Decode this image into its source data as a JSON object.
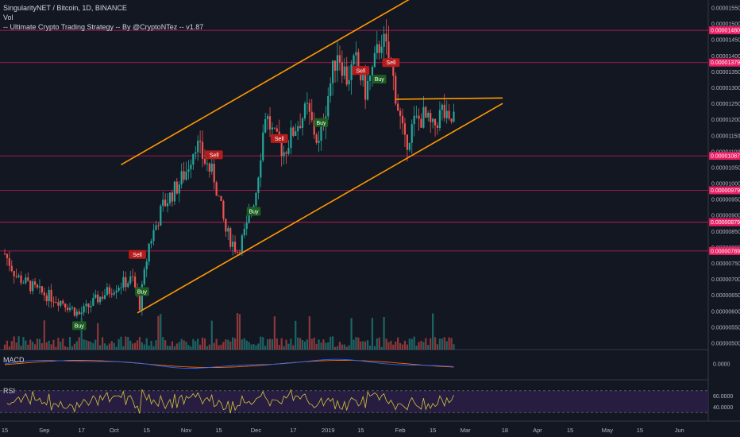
{
  "header": {
    "symbol_line": "SingularityNET / Bitcoin, 1D, BINANCE",
    "vol_label": "Vol",
    "strategy_label": "-- Ultimate Crypto Trading Strategy -- By @CryptoNTez -- v1.87"
  },
  "panes": {
    "macd_label": "MACD",
    "rsi_label": "RSI"
  },
  "colors": {
    "background": "#131722",
    "up": "#26a69a",
    "down": "#ef5350",
    "channel": "#ff9800",
    "level": "#e91e63",
    "macd": "#2962ff",
    "signal": "#ff6d00",
    "rsi": "#d4c53a",
    "rsi_band": "#2a1e45"
  },
  "chart_data": {
    "type": "candlestick",
    "price_axis": {
      "min": 5e-06,
      "max": 1.56e-05,
      "ticks": [
        "0.00001550",
        "0.00001500",
        "0.00001450",
        "0.00001400",
        "0.00001350",
        "0.00001300",
        "0.00001250",
        "0.00001200",
        "0.00001150",
        "0.00001100",
        "0.00001050",
        "0.00001000",
        "0.00000950",
        "0.00000900",
        "0.00000850",
        "0.00000800",
        "0.00000750",
        "0.00000700",
        "0.00000650",
        "0.00000600",
        "0.00000550",
        "0.00000500"
      ]
    },
    "time_axis": {
      "labels": [
        {
          "label": "15",
          "d": 0
        },
        {
          "label": "Sep",
          "d": 17
        },
        {
          "label": "17",
          "d": 33
        },
        {
          "label": "Oct",
          "d": 47
        },
        {
          "label": "15",
          "d": 61
        },
        {
          "label": "Nov",
          "d": 78
        },
        {
          "label": "15",
          "d": 92
        },
        {
          "label": "Dec",
          "d": 108
        },
        {
          "label": "17",
          "d": 124
        },
        {
          "label": "2019",
          "d": 139
        },
        {
          "label": "15",
          "d": 153
        },
        {
          "label": "Feb",
          "d": 170
        },
        {
          "label": "15",
          "d": 184
        },
        {
          "label": "Mar",
          "d": 198
        },
        {
          "label": "18",
          "d": 215
        },
        {
          "label": "Apr",
          "d": 229
        },
        {
          "label": "15",
          "d": 243
        },
        {
          "label": "May",
          "d": 259
        },
        {
          "label": "15",
          "d": 273
        },
        {
          "label": "Jun",
          "d": 290
        }
      ]
    },
    "levels": [
      {
        "price": 1.48e-05,
        "label": "0.00001480"
      },
      {
        "price": 1.379e-05,
        "label": "0.00001379"
      },
      {
        "price": 1.087e-05,
        "label": "0.00001087"
      },
      {
        "price": 9.79e-06,
        "label": "0.00000979"
      },
      {
        "price": 8.79e-06,
        "label": "0.00000879"
      },
      {
        "price": 7.89e-06,
        "label": "0.00000789"
      }
    ],
    "trendlines": [
      {
        "from": [
          50,
          1.059e-05
        ],
        "to": [
          177,
          1.59e-05
        ]
      },
      {
        "from": [
          57,
          5.95e-06
        ],
        "to": [
          214,
          1.251e-05
        ]
      },
      {
        "from": [
          168,
          1.264e-05
        ],
        "to": [
          214,
          1.268e-05
        ]
      }
    ],
    "signals": [
      {
        "text": "Buy",
        "d": 32,
        "price": 5.55e-06,
        "side": "buy"
      },
      {
        "text": "Buy",
        "d": 59,
        "price": 6.62e-06,
        "side": "buy"
      },
      {
        "text": "Sell",
        "d": 57,
        "price": 7.78e-06,
        "side": "sell"
      },
      {
        "text": "Buy",
        "d": 107,
        "price": 9.13e-06,
        "side": "buy"
      },
      {
        "text": "Sell",
        "d": 90,
        "price": 1.09e-05,
        "side": "sell"
      },
      {
        "text": "Sell",
        "d": 118,
        "price": 1.141e-05,
        "side": "sell"
      },
      {
        "text": "Buy",
        "d": 136,
        "price": 1.191e-05,
        "side": "buy"
      },
      {
        "text": "Sell",
        "d": 153,
        "price": 1.354e-05,
        "side": "sell"
      },
      {
        "text": "Buy",
        "d": 161,
        "price": 1.327e-05,
        "side": "buy"
      },
      {
        "text": "Sell",
        "d": 166,
        "price": 1.379e-05,
        "side": "sell"
      }
    ],
    "swing_points": [
      {
        "d": 0,
        "price": 7.8e-06
      },
      {
        "d": 5,
        "price": 7.1e-06
      },
      {
        "d": 15,
        "price": 6.6e-06
      },
      {
        "d": 25,
        "price": 6.3e-06
      },
      {
        "d": 32,
        "price": 5.9e-06
      },
      {
        "d": 40,
        "price": 6.4e-06
      },
      {
        "d": 48,
        "price": 6.8e-06
      },
      {
        "d": 55,
        "price": 7e-06
      },
      {
        "d": 58,
        "price": 6.2e-06
      },
      {
        "d": 62,
        "price": 8.1e-06
      },
      {
        "d": 68,
        "price": 9.3e-06
      },
      {
        "d": 74,
        "price": 9.9e-06
      },
      {
        "d": 78,
        "price": 1.04e-05
      },
      {
        "d": 82,
        "price": 1.13e-05
      },
      {
        "d": 86,
        "price": 1.07e-05
      },
      {
        "d": 90,
        "price": 1.02e-05
      },
      {
        "d": 95,
        "price": 8.5e-06
      },
      {
        "d": 100,
        "price": 7.9e-06
      },
      {
        "d": 104,
        "price": 8.6e-06
      },
      {
        "d": 108,
        "price": 9.8e-06
      },
      {
        "d": 112,
        "price": 1.22e-05
      },
      {
        "d": 116,
        "price": 1.14e-05
      },
      {
        "d": 120,
        "price": 1.1e-05
      },
      {
        "d": 125,
        "price": 1.18e-05
      },
      {
        "d": 130,
        "price": 1.23e-05
      },
      {
        "d": 135,
        "price": 1.12e-05
      },
      {
        "d": 139,
        "price": 1.28e-05
      },
      {
        "d": 143,
        "price": 1.42e-05
      },
      {
        "d": 147,
        "price": 1.33e-05
      },
      {
        "d": 151,
        "price": 1.38e-05
      },
      {
        "d": 155,
        "price": 1.29e-05
      },
      {
        "d": 158,
        "price": 1.35e-05
      },
      {
        "d": 162,
        "price": 1.46e-05
      },
      {
        "d": 166,
        "price": 1.37e-05
      },
      {
        "d": 169,
        "price": 1.24e-05
      },
      {
        "d": 172,
        "price": 1.12e-05
      },
      {
        "d": 176,
        "price": 1.19e-05
      },
      {
        "d": 180,
        "price": 1.21e-05
      },
      {
        "d": 184,
        "price": 1.17e-05
      },
      {
        "d": 188,
        "price": 1.23e-05
      },
      {
        "d": 191,
        "price": 1.18e-05
      },
      {
        "d": 193,
        "price": 1.21e-05
      }
    ],
    "last_day": 193,
    "macd_axis": {
      "label": "0.0000"
    },
    "rsi_axis": {
      "ticks": [
        "60.0000",
        "40.0000"
      ],
      "band": [
        30,
        70
      ]
    }
  }
}
